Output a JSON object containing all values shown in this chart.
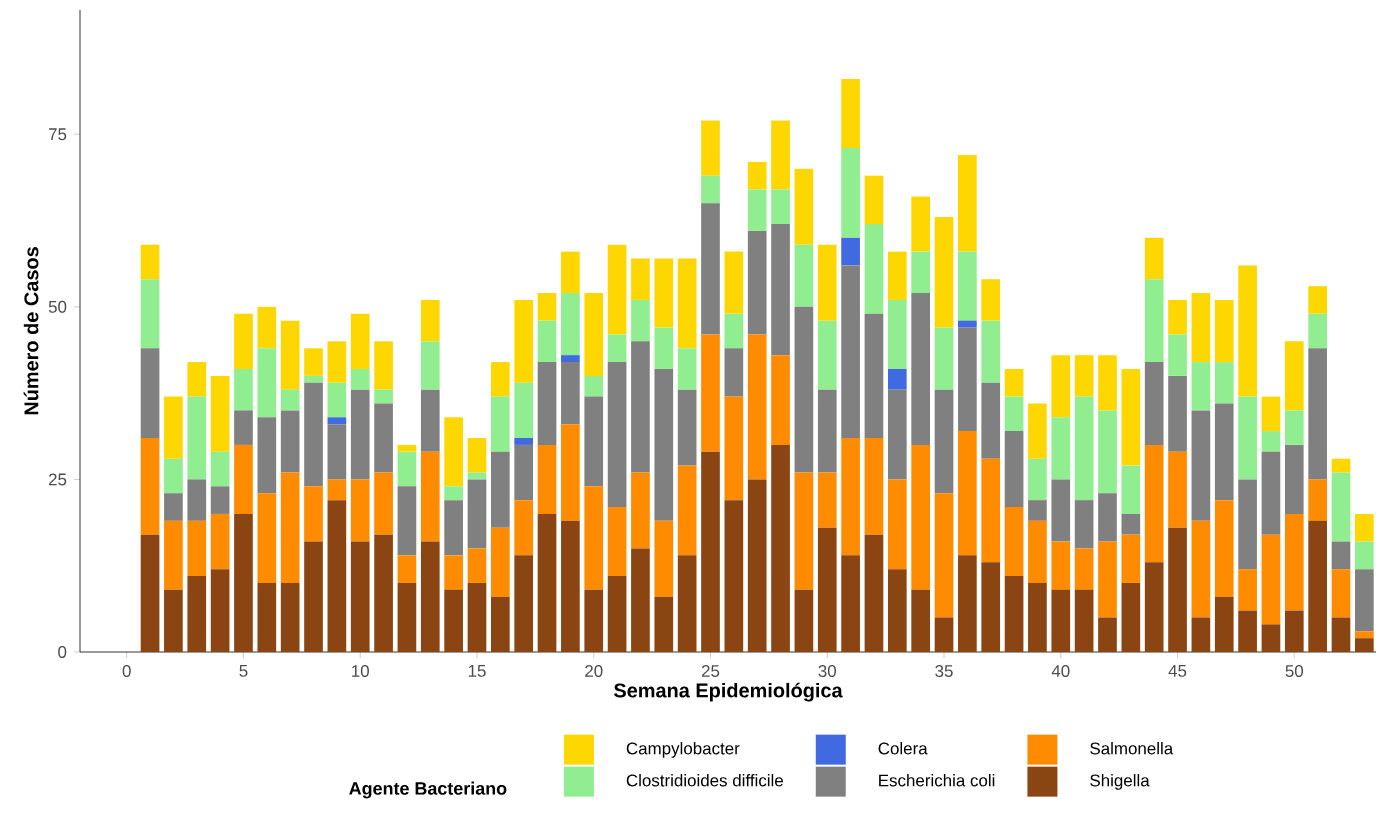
{
  "chart_data": {
    "type": "bar",
    "stacked": true,
    "xlabel": "Semana Epidemiológica",
    "ylabel": "Número de Casos",
    "legend_title": "Agente Bacteriano",
    "legend": "bottom",
    "x": [
      1,
      2,
      3,
      4,
      5,
      6,
      7,
      8,
      9,
      10,
      11,
      12,
      13,
      14,
      15,
      16,
      17,
      18,
      19,
      20,
      21,
      22,
      23,
      24,
      25,
      26,
      27,
      28,
      29,
      30,
      31,
      32,
      33,
      34,
      35,
      36,
      37,
      38,
      39,
      40,
      41,
      42,
      43,
      44,
      45,
      46,
      47,
      48,
      49,
      50,
      51,
      52,
      53
    ],
    "xlim": [
      -2,
      53.5
    ],
    "xticks": [
      0,
      5,
      10,
      15,
      20,
      25,
      30,
      35,
      40,
      45,
      50
    ],
    "ylim": [
      0,
      93
    ],
    "yticks": [
      0,
      25,
      50,
      75
    ],
    "series": [
      {
        "name": "Shigella",
        "color": "#8b4513",
        "values": [
          17,
          9,
          11,
          12,
          20,
          10,
          10,
          16,
          22,
          16,
          17,
          10,
          16,
          9,
          10,
          8,
          14,
          20,
          19,
          9,
          11,
          15,
          8,
          14,
          29,
          22,
          25,
          30,
          9,
          18,
          14,
          17,
          12,
          9,
          5,
          14,
          13,
          11,
          10,
          9,
          9,
          5,
          10,
          13,
          18,
          5,
          8,
          6,
          4,
          6,
          19,
          5,
          2
        ]
      },
      {
        "name": "Salmonella",
        "color": "#ff8c00",
        "values": [
          14,
          10,
          8,
          8,
          10,
          13,
          16,
          8,
          3,
          9,
          9,
          4,
          13,
          5,
          5,
          10,
          8,
          10,
          14,
          15,
          10,
          11,
          11,
          13,
          17,
          15,
          21,
          13,
          17,
          8,
          17,
          14,
          13,
          21,
          18,
          18,
          15,
          10,
          9,
          7,
          6,
          11,
          7,
          17,
          11,
          14,
          14,
          6,
          13,
          14,
          6,
          7,
          1
        ]
      },
      {
        "name": "Escherichia coli",
        "color": "#808080",
        "values": [
          13,
          4,
          6,
          4,
          5,
          11,
          9,
          15,
          8,
          13,
          10,
          10,
          9,
          8,
          10,
          11,
          8,
          12,
          9,
          13,
          21,
          19,
          22,
          11,
          19,
          7,
          15,
          19,
          24,
          12,
          25,
          18,
          13,
          22,
          15,
          15,
          11,
          11,
          3,
          9,
          7,
          7,
          3,
          12,
          11,
          16,
          14,
          13,
          12,
          10,
          19,
          4,
          9
        ]
      },
      {
        "name": "Colera",
        "color": "#4169e1",
        "values": [
          0,
          0,
          0,
          0,
          0,
          0,
          0,
          0,
          1,
          0,
          0,
          0,
          0,
          0,
          0,
          0,
          1,
          0,
          1,
          0,
          0,
          0,
          0,
          0,
          0,
          0,
          0,
          0,
          0,
          0,
          4,
          0,
          3,
          0,
          0,
          1,
          0,
          0,
          0,
          0,
          0,
          0,
          0,
          0,
          0,
          0,
          0,
          0,
          0,
          0,
          0,
          0,
          0
        ]
      },
      {
        "name": "Clostridioides difficile",
        "color": "#90ee90",
        "values": [
          10,
          5,
          12,
          5,
          6,
          10,
          3,
          1,
          5,
          3,
          2,
          5,
          7,
          2,
          1,
          8,
          8,
          6,
          9,
          3,
          4,
          6,
          6,
          6,
          4,
          5,
          6,
          5,
          9,
          10,
          13,
          13,
          10,
          6,
          9,
          10,
          9,
          5,
          6,
          9,
          15,
          12,
          7,
          12,
          6,
          7,
          6,
          12,
          3,
          5,
          5,
          10,
          4
        ]
      },
      {
        "name": "Campylobacter",
        "color": "#ffd700",
        "values": [
          5,
          9,
          5,
          11,
          8,
          6,
          10,
          4,
          6,
          8,
          7,
          1,
          6,
          10,
          5,
          5,
          12,
          4,
          6,
          12,
          13,
          6,
          10,
          13,
          8,
          9,
          4,
          10,
          11,
          11,
          10,
          7,
          7,
          8,
          16,
          14,
          6,
          4,
          8,
          9,
          6,
          8,
          14,
          6,
          5,
          10,
          9,
          19,
          5,
          10,
          4,
          2,
          4
        ]
      }
    ]
  }
}
